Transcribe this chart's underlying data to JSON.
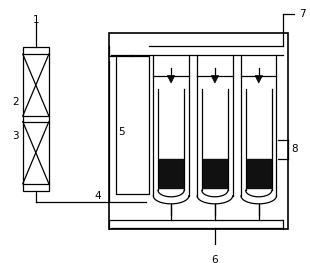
{
  "bg_color": "#ffffff",
  "line_color": "#000000",
  "fill_color": "#111111",
  "label_fontsize": 7.5,
  "lw": 0.9
}
